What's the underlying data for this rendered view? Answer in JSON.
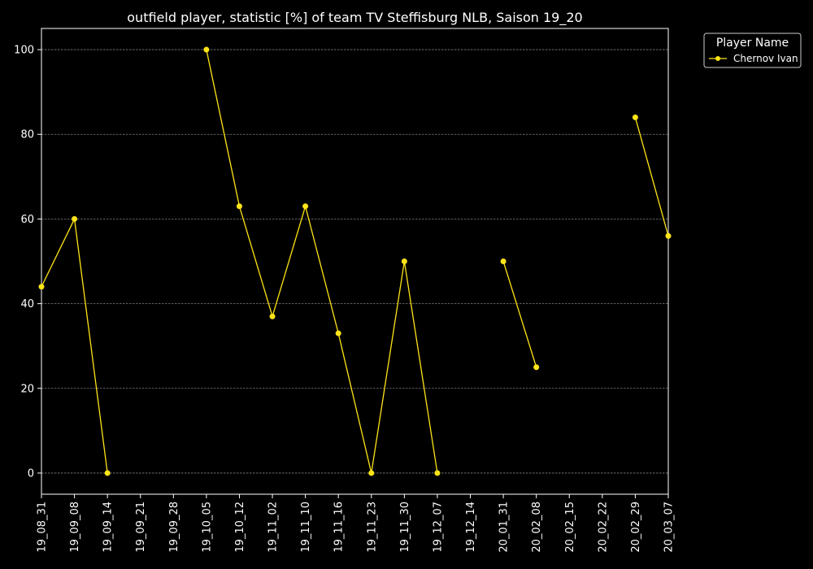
{
  "chart_data": {
    "type": "line",
    "title": "outfield player, statistic [%] of team TV Steffisburg NLB, Saison 19_20",
    "xlabel": "",
    "ylabel": "",
    "categories": [
      "19_08_31",
      "19_09_08",
      "19_09_14",
      "19_09_21",
      "19_09_28",
      "19_10_05",
      "19_10_12",
      "19_11_02",
      "19_11_10",
      "19_11_16",
      "19_11_23",
      "19_11_30",
      "19_12_07",
      "19_12_14",
      "20_01_31",
      "20_02_08",
      "20_02_15",
      "20_02_22",
      "20_02_29",
      "20_03_07"
    ],
    "ylim": [
      -5,
      105
    ],
    "yticks": [
      0,
      20,
      40,
      60,
      80,
      100
    ],
    "grid": true,
    "legend": {
      "title": "Player Name",
      "placement": "outside-top-right"
    },
    "series": [
      {
        "name": "Chernov Ivan",
        "color": "#ffe417",
        "values": [
          44,
          60,
          0,
          null,
          null,
          100,
          63,
          37,
          63,
          33,
          0,
          50,
          0,
          null,
          50,
          25,
          null,
          null,
          84,
          56
        ]
      }
    ]
  },
  "colors": {
    "background": "#000000",
    "axes": "#ffffff",
    "grid": "#7f7f7f"
  }
}
